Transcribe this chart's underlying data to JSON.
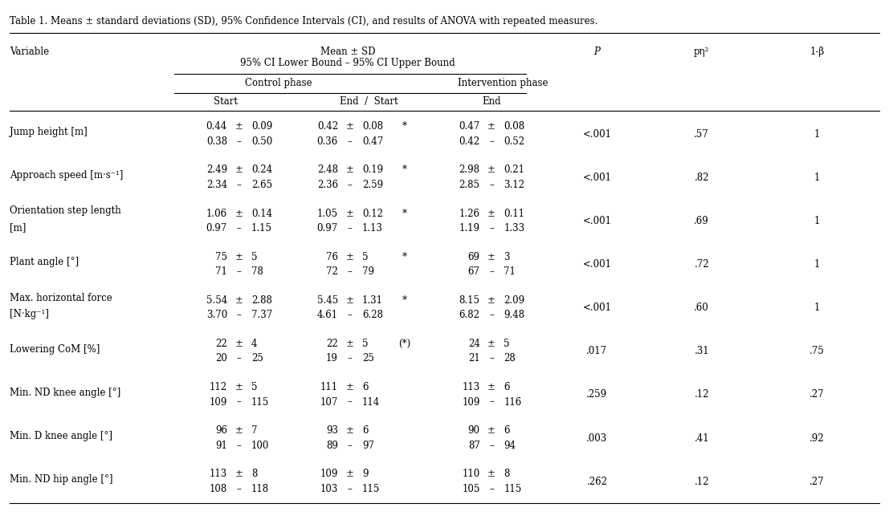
{
  "title": "Table 1. Means ± standard deviations (SD), 95% Confidence Intervals (CI), and results of ANOVA with repeated measures.",
  "rows": [
    {
      "variable": "Jump height [m]",
      "variable2": "",
      "cs_mean": "0.44",
      "cs_sd": "0.09",
      "cs_ci1": "0.38",
      "cs_ci2": "0.50",
      "ce_mean": "0.42",
      "ce_sd": "0.08",
      "ce_ci1": "0.36",
      "ce_ci2": "0.47",
      "sig": "*",
      "ip_mean": "0.47",
      "ip_sd": "0.08",
      "ip_ci1": "0.42",
      "ip_ci2": "0.52",
      "P": "<.001",
      "peta": ".57",
      "beta": "1"
    },
    {
      "variable": "Approach speed [m·s⁻¹]",
      "variable2": "",
      "cs_mean": "2.49",
      "cs_sd": "0.24",
      "cs_ci1": "2.34",
      "cs_ci2": "2.65",
      "ce_mean": "2.48",
      "ce_sd": "0.19",
      "ce_ci1": "2.36",
      "ce_ci2": "2.59",
      "sig": "*",
      "ip_mean": "2.98",
      "ip_sd": "0.21",
      "ip_ci1": "2.85",
      "ip_ci2": "3.12",
      "P": "<.001",
      "peta": ".82",
      "beta": "1"
    },
    {
      "variable": "Orientation step length",
      "variable2": "[m]",
      "cs_mean": "1.06",
      "cs_sd": "0.14",
      "cs_ci1": "0.97",
      "cs_ci2": "1.15",
      "ce_mean": "1.05",
      "ce_sd": "0.12",
      "ce_ci1": "0.97",
      "ce_ci2": "1.13",
      "sig": "*",
      "ip_mean": "1.26",
      "ip_sd": "0.11",
      "ip_ci1": "1.19",
      "ip_ci2": "1.33",
      "P": "<.001",
      "peta": ".69",
      "beta": "1"
    },
    {
      "variable": "Plant angle [°]",
      "variable2": "",
      "cs_mean": "75",
      "cs_sd": "5",
      "cs_ci1": "71",
      "cs_ci2": "78",
      "ce_mean": "76",
      "ce_sd": "5",
      "ce_ci1": "72",
      "ce_ci2": "79",
      "sig": "*",
      "ip_mean": "69",
      "ip_sd": "3",
      "ip_ci1": "67",
      "ip_ci2": "71",
      "P": "<.001",
      "peta": ".72",
      "beta": "1"
    },
    {
      "variable": "Max. horizontal force",
      "variable2": "[N·kg⁻¹]",
      "cs_mean": "5.54",
      "cs_sd": "2.88",
      "cs_ci1": "3.70",
      "cs_ci2": "7.37",
      "ce_mean": "5.45",
      "ce_sd": "1.31",
      "ce_ci1": "4.61",
      "ce_ci2": "6.28",
      "sig": "*",
      "ip_mean": "8.15",
      "ip_sd": "2.09",
      "ip_ci1": "6.82",
      "ip_ci2": "9.48",
      "P": "<.001",
      "peta": ".60",
      "beta": "1"
    },
    {
      "variable": "Lowering CoM [%]",
      "variable2": "",
      "cs_mean": "22",
      "cs_sd": "4",
      "cs_ci1": "20",
      "cs_ci2": "25",
      "ce_mean": "22",
      "ce_sd": "5",
      "ce_ci1": "19",
      "ce_ci2": "25",
      "sig": "(*)",
      "ip_mean": "24",
      "ip_sd": "5",
      "ip_ci1": "21",
      "ip_ci2": "28",
      "P": ".017",
      "peta": ".31",
      "beta": ".75"
    },
    {
      "variable": "Min. ND knee angle [°]",
      "variable2": "",
      "cs_mean": "112",
      "cs_sd": "5",
      "cs_ci1": "109",
      "cs_ci2": "115",
      "ce_mean": "111",
      "ce_sd": "6",
      "ce_ci1": "107",
      "ce_ci2": "114",
      "sig": "",
      "ip_mean": "113",
      "ip_sd": "6",
      "ip_ci1": "109",
      "ip_ci2": "116",
      "P": ".259",
      "peta": ".12",
      "beta": ".27"
    },
    {
      "variable": "Min. D knee angle [°]",
      "variable2": "",
      "cs_mean": "96",
      "cs_sd": "7",
      "cs_ci1": "91",
      "cs_ci2": "100",
      "ce_mean": "93",
      "ce_sd": "6",
      "ce_ci1": "89",
      "ce_ci2": "97",
      "sig": "",
      "ip_mean": "90",
      "ip_sd": "6",
      "ip_ci1": "87",
      "ip_ci2": "94",
      "P": ".003",
      "peta": ".41",
      "beta": ".92"
    },
    {
      "variable": "Min. ND hip angle [°]",
      "variable2": "",
      "cs_mean": "113",
      "cs_sd": "8",
      "cs_ci1": "108",
      "cs_ci2": "118",
      "ce_mean": "109",
      "ce_sd": "9",
      "ce_ci1": "103",
      "ce_ci2": "115",
      "sig": "",
      "ip_mean": "110",
      "ip_sd": "8",
      "ip_ci1": "105",
      "ip_ci2": "115",
      "P": ".262",
      "peta": ".12",
      "beta": ".27"
    }
  ]
}
